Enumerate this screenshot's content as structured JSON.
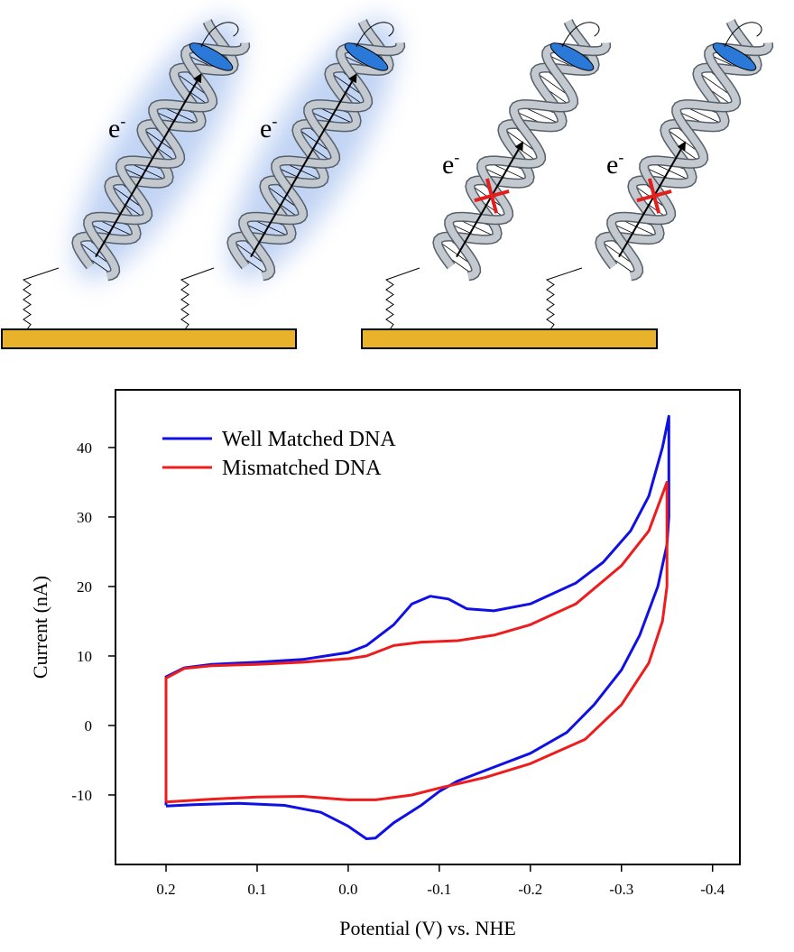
{
  "diagram": {
    "labels": [
      {
        "base": "e",
        "sup": "-"
      },
      {
        "base": "e",
        "sup": "-"
      },
      {
        "base": "e",
        "sup": "-"
      },
      {
        "base": "e",
        "sup": "-"
      }
    ]
  },
  "chart_data": {
    "type": "line",
    "x_label": "Potential (V) vs. NHE",
    "y_label": "Current (nA)",
    "xlim": [
      0.2555,
      -0.43
    ],
    "ylim": [
      -20,
      48.3
    ],
    "xticks": [
      0.2,
      0.1,
      {
        "value": 0,
        "label": "0.0"
      },
      -0.1,
      -0.2,
      -0.3,
      -0.4
    ],
    "yticks": [
      40,
      30,
      20,
      10,
      0,
      -10
    ],
    "grid": false,
    "legend": "upper left",
    "series": [
      {
        "name": "Well Matched DNA",
        "color": "#1010e6",
        "x": [
          0.2,
          0.2,
          0.18,
          0.15,
          0.1,
          0.05,
          0.0,
          -0.02,
          -0.05,
          -0.07,
          -0.09,
          -0.11,
          -0.13,
          -0.16,
          -0.2,
          -0.25,
          -0.28,
          -0.31,
          -0.33,
          -0.345,
          -0.352,
          -0.352,
          -0.35,
          -0.34,
          -0.32,
          -0.3,
          -0.27,
          -0.24,
          -0.2,
          -0.15,
          -0.12,
          -0.1,
          -0.08,
          -0.05,
          -0.03,
          -0.02,
          0.0,
          0.03,
          0.07,
          0.12,
          0.17,
          0.2
        ],
        "values": [
          -11.5,
          7,
          8.3,
          8.8,
          9.1,
          9.5,
          10.5,
          11.5,
          14.5,
          17.5,
          18.6,
          18.2,
          16.8,
          16.5,
          17.5,
          20.5,
          23.5,
          28,
          33,
          40,
          44.5,
          30,
          26,
          20,
          13,
          8,
          3,
          -1,
          -4,
          -6.5,
          -8,
          -9.5,
          -11.5,
          -14,
          -16.2,
          -16.3,
          -14.5,
          -12.5,
          -11.5,
          -11.2,
          -11.4,
          -11.6
        ]
      },
      {
        "name": "Mismatched DNA",
        "color": "#ee1c1c",
        "x": [
          0.2,
          0.2,
          0.18,
          0.15,
          0.1,
          0.05,
          0.0,
          -0.02,
          -0.05,
          -0.08,
          -0.12,
          -0.16,
          -0.2,
          -0.25,
          -0.3,
          -0.33,
          -0.35,
          -0.35,
          -0.345,
          -0.33,
          -0.3,
          -0.26,
          -0.2,
          -0.15,
          -0.1,
          -0.07,
          -0.03,
          0.0,
          0.05,
          0.1,
          0.15,
          0.2
        ],
        "values": [
          -11,
          6.8,
          8.2,
          8.6,
          8.8,
          9.1,
          9.6,
          10,
          11.5,
          12,
          12.2,
          13,
          14.5,
          17.5,
          23,
          28,
          35,
          20,
          15,
          9,
          3,
          -2,
          -5.5,
          -7.5,
          -9,
          -10,
          -10.7,
          -10.7,
          -10.2,
          -10.3,
          -10.6,
          -11
        ]
      }
    ]
  }
}
